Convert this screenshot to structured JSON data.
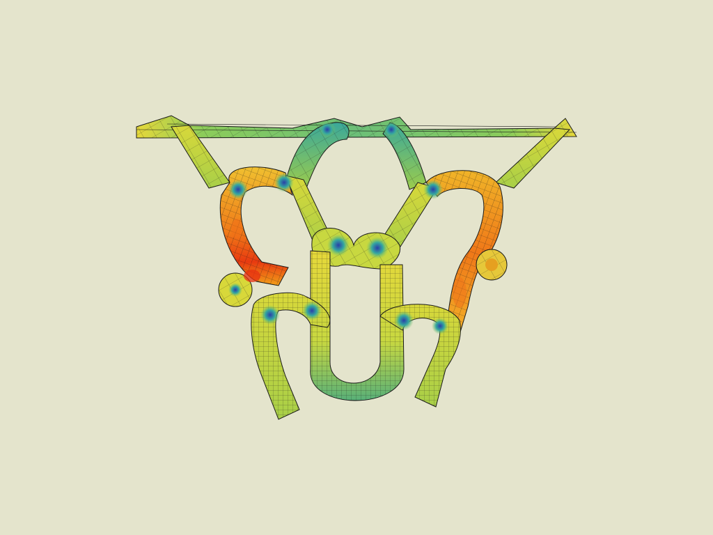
{
  "viewport": {
    "background": "#e4e4cc",
    "mesh_line_color": "#1a1a1a"
  },
  "colormap": {
    "name": "jet-like",
    "stops": [
      "#2a3fa8",
      "#35a8a0",
      "#7cc45a",
      "#e6d83a",
      "#f2a018",
      "#e83010"
    ]
  },
  "scene": {
    "description_visible": false,
    "object_type": "deformed-mesh-loops"
  }
}
